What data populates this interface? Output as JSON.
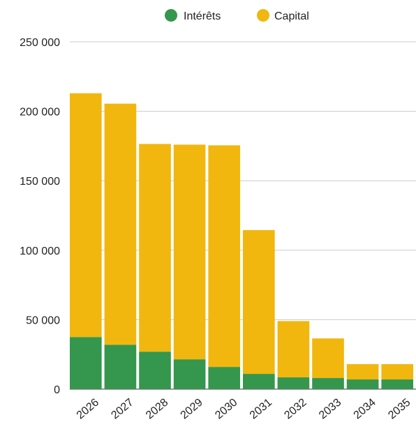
{
  "chart_data": {
    "type": "bar",
    "stacked": true,
    "categories": [
      "2026",
      "2027",
      "2028",
      "2029",
      "2030",
      "2031",
      "2032",
      "2033",
      "2034",
      "2035"
    ],
    "series": [
      {
        "name": "Intérêts",
        "color": "#34974d",
        "values": [
          37500,
          32000,
          27000,
          21500,
          16000,
          11000,
          8500,
          8000,
          7000,
          7000
        ]
      },
      {
        "name": "Capital",
        "color": "#f1b70f",
        "values": [
          175500,
          173500,
          149500,
          154500,
          159500,
          103500,
          40500,
          28500,
          11000,
          11000
        ]
      }
    ],
    "ylim": [
      0,
      250000
    ],
    "yticks": [
      0,
      50000,
      100000,
      150000,
      200000,
      250000
    ],
    "ytick_labels": [
      "0",
      "50 000",
      "100 000",
      "150 000",
      "200 000",
      "250 000"
    ],
    "grid": true,
    "legend_position": "top-center",
    "xlabel": "",
    "ylabel": "",
    "title": ""
  }
}
